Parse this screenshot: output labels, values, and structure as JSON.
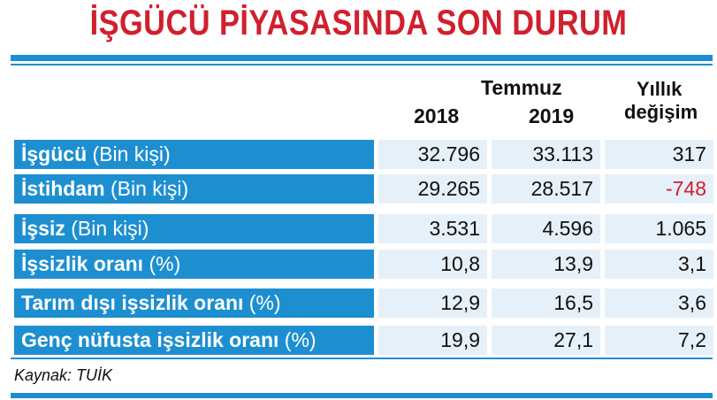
{
  "title": "İŞGÜCÜ PİYASASINDA SON DURUM",
  "header": {
    "month": "Temmuz",
    "year1": "2018",
    "year2": "2019",
    "change_line1": "Yıllık",
    "change_line2": "değişim"
  },
  "rows": [
    {
      "label_bold": "İşgücü",
      "label_rest": " (Bin kişi)",
      "v2018": "32.796",
      "v2019": "33.113",
      "change": "317"
    },
    {
      "label_bold": "İstihdam",
      "label_rest": " (Bin kişi)",
      "v2018": "29.265",
      "v2019": "28.517",
      "change": "-748"
    },
    {
      "label_bold": "İşsiz",
      "label_rest": " (Bin kişi)",
      "v2018": "3.531",
      "v2019": "4.596",
      "change": "1.065"
    },
    {
      "label_bold": "İşsizlik oranı",
      "label_rest": " (%)",
      "v2018": "10,8",
      "v2019": "13,9",
      "change": "3,1"
    },
    {
      "label_bold": "Tarım dışı işsizlik oranı",
      "label_rest": " (%)",
      "v2018": "12,9",
      "v2019": "16,5",
      "change": "3,6"
    },
    {
      "label_bold": "Genç nüfusta işsizlik oranı",
      "label_rest": " (%)",
      "v2018": "19,9",
      "v2019": "27,1",
      "change": "7,2"
    }
  ],
  "source": "Kaynak: TUİK",
  "colors": {
    "accent": "#1d8fd1",
    "title": "#d0202e",
    "negative": "#d0202e",
    "cell_bg": "#e6f0f8"
  },
  "chart_data": {
    "type": "table",
    "title": "İŞGÜCÜ PİYASASINDA SON DURUM",
    "columns": [
      "",
      "2018",
      "2019",
      "Yıllık değişim"
    ],
    "column_group": "Temmuz",
    "rows": [
      [
        "İşgücü (Bin kişi)",
        32796,
        33113,
        317
      ],
      [
        "İstihdam (Bin kişi)",
        29265,
        28517,
        -748
      ],
      [
        "İşsiz (Bin kişi)",
        3531,
        4596,
        1065
      ],
      [
        "İşsizlik oranı (%)",
        10.8,
        13.9,
        3.1
      ],
      [
        "Tarım dışı işsizlik oranı (%)",
        12.9,
        16.5,
        3.6
      ],
      [
        "Genç nüfusta işsizlik oranı (%)",
        19.9,
        27.1,
        7.2
      ]
    ],
    "source": "Kaynak: TUİK"
  }
}
